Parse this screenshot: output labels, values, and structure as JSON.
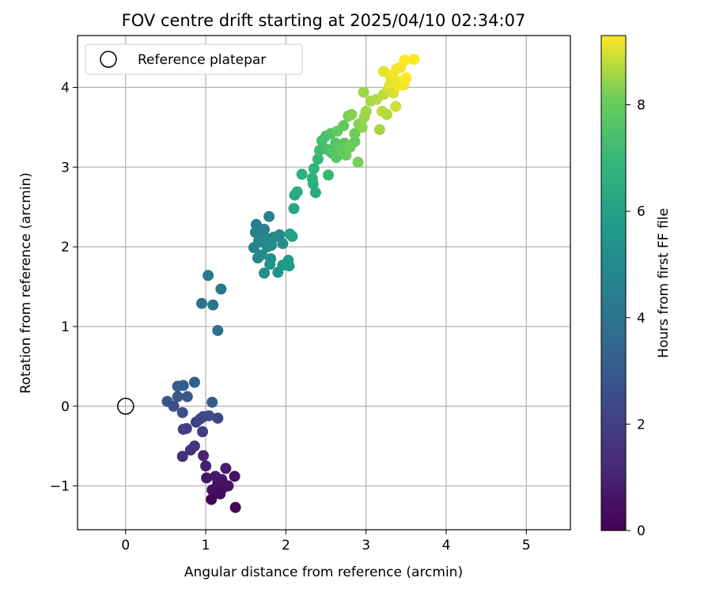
{
  "chart_data": {
    "type": "scatter",
    "title": "FOV centre drift starting at 2025/04/10 02:34:07",
    "xlabel": "Angular distance from reference (arcmin)",
    "ylabel": "Rotation from reference (arcmin)",
    "colorbar_label": "Hours from first FF file",
    "xlim": [
      -0.6,
      5.55
    ],
    "ylim": [
      -1.55,
      4.65
    ],
    "xticks": [
      0,
      1,
      2,
      3,
      4,
      5
    ],
    "yticks": [
      -1,
      0,
      1,
      2,
      3,
      4
    ],
    "colorbar_range": [
      0,
      9.3
    ],
    "colorbar_ticks": [
      0,
      2,
      4,
      6,
      8
    ],
    "colormap": "viridis",
    "grid": true,
    "legend": {
      "position": "top-left",
      "entries": [
        "Reference platepar"
      ]
    },
    "reference_point": {
      "x": 0,
      "y": 0
    },
    "points": [
      {
        "x": 1.37,
        "y": -1.27,
        "t": 0.2
      },
      {
        "x": 1.07,
        "y": -1.17,
        "t": 0.1
      },
      {
        "x": 1.18,
        "y": -1.1,
        "t": 0.3
      },
      {
        "x": 1.08,
        "y": -1.05,
        "t": 0.4
      },
      {
        "x": 1.22,
        "y": -1.02,
        "t": 0.3
      },
      {
        "x": 1.28,
        "y": -1.0,
        "t": 0.5
      },
      {
        "x": 1.15,
        "y": -0.97,
        "t": 0.4
      },
      {
        "x": 1.01,
        "y": -0.9,
        "t": 0.6
      },
      {
        "x": 1.36,
        "y": -0.88,
        "t": 0.5
      },
      {
        "x": 1.12,
        "y": -0.88,
        "t": 0.7
      },
      {
        "x": 1.2,
        "y": -0.92,
        "t": 0.6
      },
      {
        "x": 1.25,
        "y": -0.78,
        "t": 0.8
      },
      {
        "x": 1.0,
        "y": -0.75,
        "t": 0.9
      },
      {
        "x": 0.97,
        "y": -0.62,
        "t": 1.1
      },
      {
        "x": 0.71,
        "y": -0.63,
        "t": 1.4
      },
      {
        "x": 0.81,
        "y": -0.55,
        "t": 1.5
      },
      {
        "x": 0.86,
        "y": -0.5,
        "t": 1.6
      },
      {
        "x": 0.72,
        "y": -0.29,
        "t": 1.9
      },
      {
        "x": 0.76,
        "y": -0.28,
        "t": 2.0
      },
      {
        "x": 0.96,
        "y": -0.32,
        "t": 1.8
      },
      {
        "x": 0.88,
        "y": -0.2,
        "t": 2.0
      },
      {
        "x": 0.93,
        "y": -0.16,
        "t": 2.2
      },
      {
        "x": 0.97,
        "y": -0.13,
        "t": 2.3
      },
      {
        "x": 1.04,
        "y": -0.12,
        "t": 2.4
      },
      {
        "x": 1.15,
        "y": -0.15,
        "t": 2.2
      },
      {
        "x": 0.71,
        "y": -0.08,
        "t": 2.5
      },
      {
        "x": 0.6,
        "y": 0.0,
        "t": 2.6
      },
      {
        "x": 0.52,
        "y": 0.06,
        "t": 2.7
      },
      {
        "x": 0.65,
        "y": 0.12,
        "t": 2.8
      },
      {
        "x": 0.77,
        "y": 0.12,
        "t": 2.9
      },
      {
        "x": 0.65,
        "y": 0.25,
        "t": 3.0
      },
      {
        "x": 0.72,
        "y": 0.26,
        "t": 3.1
      },
      {
        "x": 0.86,
        "y": 0.3,
        "t": 3.2
      },
      {
        "x": 1.08,
        "y": 0.05,
        "t": 3.1
      },
      {
        "x": 1.15,
        "y": 0.95,
        "t": 3.8
      },
      {
        "x": 0.95,
        "y": 1.29,
        "t": 4.0
      },
      {
        "x": 1.09,
        "y": 1.27,
        "t": 4.1
      },
      {
        "x": 1.19,
        "y": 1.47,
        "t": 4.2
      },
      {
        "x": 1.03,
        "y": 1.64,
        "t": 4.3
      },
      {
        "x": 1.6,
        "y": 1.99,
        "t": 4.7
      },
      {
        "x": 1.65,
        "y": 1.86,
        "t": 4.8
      },
      {
        "x": 1.7,
        "y": 1.9,
        "t": 4.9
      },
      {
        "x": 1.66,
        "y": 2.07,
        "t": 4.8
      },
      {
        "x": 1.73,
        "y": 1.67,
        "t": 5.2
      },
      {
        "x": 1.8,
        "y": 1.78,
        "t": 5.4
      },
      {
        "x": 1.81,
        "y": 1.85,
        "t": 5.3
      },
      {
        "x": 1.82,
        "y": 2.02,
        "t": 5.0
      },
      {
        "x": 1.9,
        "y": 1.68,
        "t": 5.5
      },
      {
        "x": 1.96,
        "y": 1.77,
        "t": 5.6
      },
      {
        "x": 2.04,
        "y": 1.76,
        "t": 5.7
      },
      {
        "x": 2.03,
        "y": 1.83,
        "t": 5.8
      },
      {
        "x": 1.77,
        "y": 2.0,
        "t": 4.9
      },
      {
        "x": 1.85,
        "y": 2.12,
        "t": 4.8
      },
      {
        "x": 1.92,
        "y": 2.15,
        "t": 5.0
      },
      {
        "x": 1.96,
        "y": 2.04,
        "t": 5.1
      },
      {
        "x": 1.72,
        "y": 2.11,
        "t": 4.7
      },
      {
        "x": 1.62,
        "y": 2.18,
        "t": 4.6
      },
      {
        "x": 1.73,
        "y": 2.22,
        "t": 4.7
      },
      {
        "x": 1.63,
        "y": 2.28,
        "t": 4.5
      },
      {
        "x": 1.79,
        "y": 2.38,
        "t": 4.6
      },
      {
        "x": 1.69,
        "y": 2.06,
        "t": 4.8
      },
      {
        "x": 1.78,
        "y": 2.1,
        "t": 5.0
      },
      {
        "x": 2.08,
        "y": 2.13,
        "t": 6.0
      },
      {
        "x": 2.05,
        "y": 2.16,
        "t": 5.9
      },
      {
        "x": 2.1,
        "y": 2.48,
        "t": 6.2
      },
      {
        "x": 2.11,
        "y": 2.65,
        "t": 6.3
      },
      {
        "x": 2.14,
        "y": 2.69,
        "t": 6.4
      },
      {
        "x": 2.2,
        "y": 2.91,
        "t": 6.6
      },
      {
        "x": 2.34,
        "y": 2.79,
        "t": 6.5
      },
      {
        "x": 2.37,
        "y": 2.68,
        "t": 6.4
      },
      {
        "x": 2.33,
        "y": 2.86,
        "t": 6.7
      },
      {
        "x": 2.35,
        "y": 2.98,
        "t": 6.8
      },
      {
        "x": 2.53,
        "y": 2.9,
        "t": 7.0
      },
      {
        "x": 2.4,
        "y": 3.1,
        "t": 7.0
      },
      {
        "x": 2.42,
        "y": 3.21,
        "t": 7.2
      },
      {
        "x": 2.45,
        "y": 3.33,
        "t": 7.3
      },
      {
        "x": 2.5,
        "y": 3.39,
        "t": 7.4
      },
      {
        "x": 2.56,
        "y": 3.42,
        "t": 7.5
      },
      {
        "x": 2.52,
        "y": 3.22,
        "t": 7.4
      },
      {
        "x": 2.57,
        "y": 3.18,
        "t": 7.6
      },
      {
        "x": 2.63,
        "y": 3.12,
        "t": 7.7
      },
      {
        "x": 2.62,
        "y": 3.3,
        "t": 7.6
      },
      {
        "x": 2.67,
        "y": 3.26,
        "t": 7.8
      },
      {
        "x": 2.7,
        "y": 3.2,
        "t": 7.9
      },
      {
        "x": 2.73,
        "y": 3.3,
        "t": 7.8
      },
      {
        "x": 2.75,
        "y": 3.15,
        "t": 8.0
      },
      {
        "x": 2.8,
        "y": 3.25,
        "t": 8.1
      },
      {
        "x": 2.86,
        "y": 3.32,
        "t": 8.0
      },
      {
        "x": 2.64,
        "y": 3.45,
        "t": 7.9
      },
      {
        "x": 2.72,
        "y": 3.52,
        "t": 7.9
      },
      {
        "x": 2.78,
        "y": 3.64,
        "t": 8.2
      },
      {
        "x": 2.82,
        "y": 3.66,
        "t": 8.3
      },
      {
        "x": 2.86,
        "y": 3.42,
        "t": 8.1
      },
      {
        "x": 2.91,
        "y": 3.54,
        "t": 8.3
      },
      {
        "x": 2.95,
        "y": 3.5,
        "t": 8.4
      },
      {
        "x": 2.9,
        "y": 3.06,
        "t": 8.2
      },
      {
        "x": 2.98,
        "y": 3.63,
        "t": 8.5
      },
      {
        "x": 3.0,
        "y": 3.7,
        "t": 8.5
      },
      {
        "x": 2.97,
        "y": 3.94,
        "t": 8.5
      },
      {
        "x": 3.06,
        "y": 3.83,
        "t": 8.6
      },
      {
        "x": 3.13,
        "y": 3.85,
        "t": 8.7
      },
      {
        "x": 3.17,
        "y": 3.47,
        "t": 8.6
      },
      {
        "x": 3.2,
        "y": 3.7,
        "t": 8.8
      },
      {
        "x": 3.22,
        "y": 3.91,
        "t": 8.8
      },
      {
        "x": 3.26,
        "y": 3.66,
        "t": 8.7
      },
      {
        "x": 3.28,
        "y": 3.99,
        "t": 9.0
      },
      {
        "x": 3.3,
        "y": 4.04,
        "t": 9.1
      },
      {
        "x": 3.34,
        "y": 3.93,
        "t": 9.0
      },
      {
        "x": 3.35,
        "y": 4.1,
        "t": 9.1
      },
      {
        "x": 3.37,
        "y": 3.76,
        "t": 8.9
      },
      {
        "x": 3.4,
        "y": 4.02,
        "t": 9.2
      },
      {
        "x": 3.43,
        "y": 4.08,
        "t": 9.2
      },
      {
        "x": 3.47,
        "y": 4.03,
        "t": 9.2
      },
      {
        "x": 3.5,
        "y": 4.12,
        "t": 9.3
      },
      {
        "x": 3.22,
        "y": 4.2,
        "t": 9.1
      },
      {
        "x": 3.3,
        "y": 4.15,
        "t": 9.2
      },
      {
        "x": 3.43,
        "y": 4.25,
        "t": 9.2
      },
      {
        "x": 3.48,
        "y": 4.34,
        "t": 9.3
      },
      {
        "x": 3.6,
        "y": 4.35,
        "t": 9.3
      },
      {
        "x": 3.38,
        "y": 4.23,
        "t": 9.2
      }
    ]
  }
}
